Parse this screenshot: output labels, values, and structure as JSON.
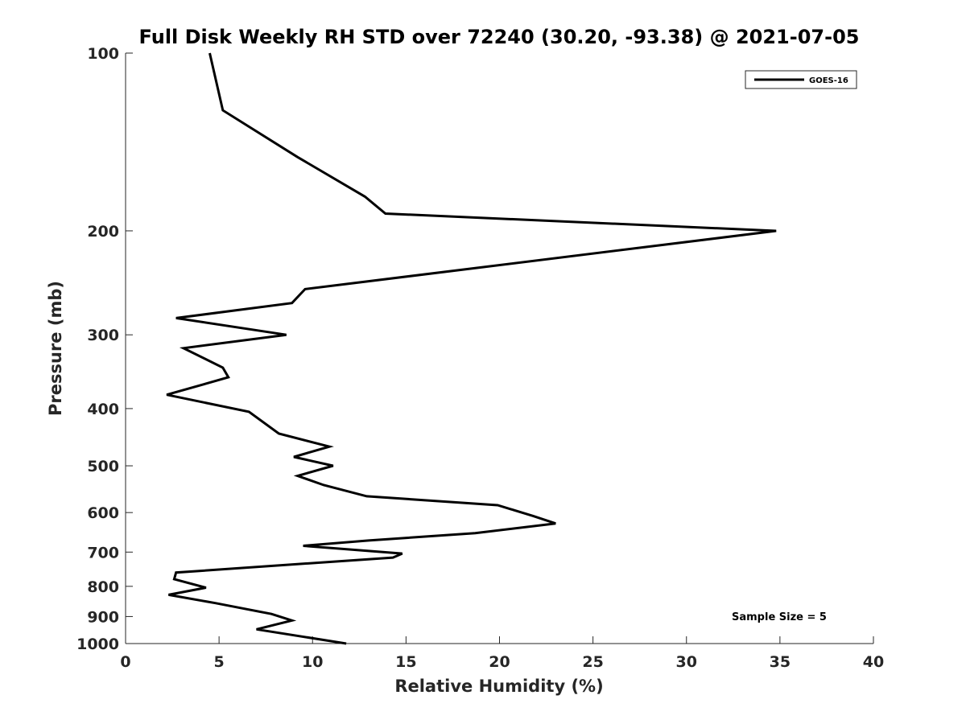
{
  "chart_data": {
    "type": "line",
    "title": "Full Disk Weekly RH STD over 72240 (30.20, -93.38) @ 2021-07-05",
    "xlabel": "Relative Humidity (%)",
    "ylabel": "Pressure (mb)",
    "xlim": [
      0,
      40
    ],
    "ylim": [
      100,
      1000
    ],
    "y_scale": "log",
    "y_direction": "reversed",
    "x_ticks": [
      0,
      5,
      10,
      15,
      20,
      25,
      30,
      35,
      40
    ],
    "y_ticks": [
      100,
      200,
      300,
      400,
      500,
      600,
      700,
      800,
      900,
      1000
    ],
    "grid": false,
    "legend": {
      "placement": "top-right",
      "entries": [
        "GOES-16"
      ]
    },
    "annotation": "Sample Size = 5",
    "series": [
      {
        "name": "GOES-16",
        "color": "#000000",
        "points": [
          [
            4.5,
            100
          ],
          [
            5.2,
            125
          ],
          [
            9.2,
            150
          ],
          [
            12.8,
            175
          ],
          [
            13.9,
            187
          ],
          [
            34.8,
            200
          ],
          [
            9.6,
            251
          ],
          [
            8.9,
            265
          ],
          [
            2.7,
            281
          ],
          [
            8.6,
            300
          ],
          [
            3.1,
            316
          ],
          [
            5.2,
            341
          ],
          [
            5.5,
            354
          ],
          [
            2.2,
            379
          ],
          [
            6.6,
            405
          ],
          [
            8.2,
            441
          ],
          [
            10.9,
            464
          ],
          [
            9.0,
            483
          ],
          [
            11.1,
            500
          ],
          [
            9.2,
            520
          ],
          [
            10.6,
            539
          ],
          [
            12.9,
            563
          ],
          [
            19.9,
            583
          ],
          [
            21.8,
            608
          ],
          [
            23.0,
            626
          ],
          [
            18.7,
            650
          ],
          [
            13.0,
            669
          ],
          [
            9.5,
            683
          ],
          [
            14.8,
            704
          ],
          [
            14.3,
            715
          ],
          [
            2.7,
            758
          ],
          [
            2.6,
            778
          ],
          [
            4.3,
            804
          ],
          [
            2.3,
            827
          ],
          [
            4.8,
            854
          ],
          [
            7.8,
            891
          ],
          [
            8.9,
            914
          ],
          [
            7.0,
            946
          ],
          [
            11.8,
            1000
          ]
        ]
      }
    ]
  }
}
